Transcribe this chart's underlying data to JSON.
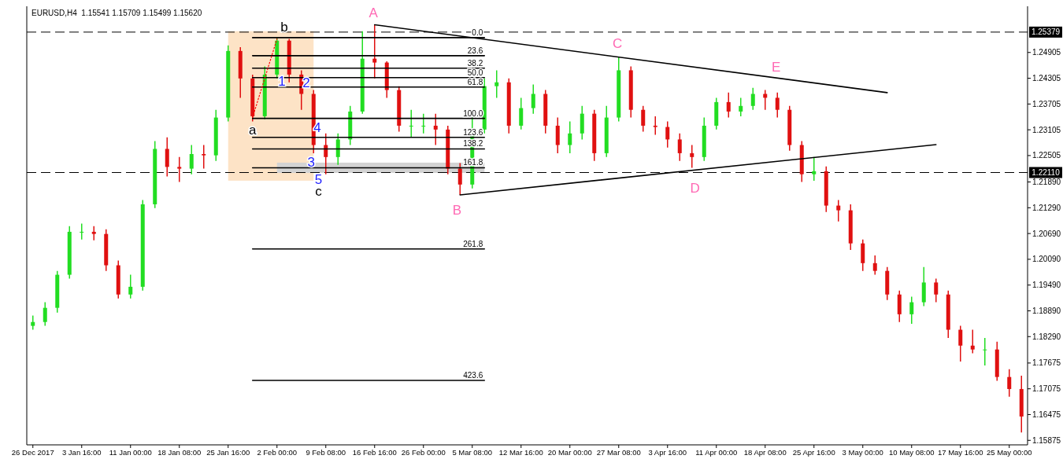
{
  "chart_data": {
    "type": "candlestick",
    "title": "EURUSD,H4  1.15541 1.15709 1.15499 1.15620",
    "categories": [
      "26 Dec 2017",
      null,
      null,
      null,
      "3 Jan 16:00",
      null,
      null,
      null,
      "11 Jan 00:00",
      null,
      null,
      null,
      "18 Jan 08:00",
      null,
      null,
      null,
      "25 Jan 16:00",
      null,
      null,
      null,
      "2 Feb 00:00",
      null,
      null,
      null,
      "9 Feb 08:00",
      null,
      null,
      null,
      "16 Feb 16:00",
      null,
      null,
      null,
      "26 Feb 00:00",
      null,
      null,
      null,
      "5 Mar 08:00",
      null,
      null,
      null,
      "12 Mar 16:00",
      null,
      null,
      null,
      "20 Mar 00:00",
      null,
      null,
      null,
      "27 Mar 08:00",
      null,
      null,
      null,
      "3 Apr 16:00",
      null,
      null,
      null,
      "11 Apr 00:00",
      null,
      null,
      null,
      "18 Apr 08:00",
      null,
      null,
      null,
      "25 Apr 16:00",
      null,
      null,
      null,
      "3 May 00:00",
      null,
      null,
      null,
      "10 May 08:00",
      null,
      null,
      null,
      "17 May 16:00",
      null,
      null,
      null,
      "25 May 00:00",
      null
    ],
    "ohlc": [
      [
        1.1854,
        1.1878,
        1.1845,
        1.1863
      ],
      [
        1.1863,
        1.1909,
        1.1854,
        1.1896
      ],
      [
        1.1896,
        1.1982,
        1.1885,
        1.1973
      ],
      [
        1.1973,
        1.2086,
        1.1964,
        1.2073
      ],
      [
        1.2073,
        1.2092,
        1.2055,
        1.2073
      ],
      [
        1.2073,
        1.2086,
        1.2053,
        1.2068
      ],
      [
        1.2068,
        1.2079,
        1.1982,
        1.1995
      ],
      [
        1.1995,
        1.2006,
        1.1918,
        1.1927
      ],
      [
        1.1927,
        1.1973,
        1.1918,
        1.1945
      ],
      [
        1.1945,
        1.2147,
        1.1936,
        1.2137
      ],
      [
        1.2137,
        1.2284,
        1.2128,
        1.2266
      ],
      [
        1.2266,
        1.2293,
        1.2202,
        1.2224
      ],
      [
        1.2224,
        1.2247,
        1.2189,
        1.222
      ],
      [
        1.222,
        1.2275,
        1.2207,
        1.2254
      ],
      [
        1.2254,
        1.2275,
        1.222,
        1.2251
      ],
      [
        1.2251,
        1.2357,
        1.2238,
        1.2339
      ],
      [
        1.2339,
        1.2507,
        1.233,
        1.2494
      ],
      [
        1.2494,
        1.2503,
        1.2385,
        1.243
      ],
      [
        1.243,
        1.2439,
        1.233,
        1.2342
      ],
      [
        1.2342,
        1.2458,
        1.2335,
        1.2439
      ],
      [
        1.2439,
        1.2525,
        1.243,
        1.2518
      ],
      [
        1.2518,
        1.2522,
        1.2421,
        1.2439
      ],
      [
        1.2439,
        1.2449,
        1.2357,
        1.2394
      ],
      [
        1.2394,
        1.2403,
        1.2256,
        1.2275
      ],
      [
        1.2275,
        1.2302,
        1.2207,
        1.2247
      ],
      [
        1.2247,
        1.2302,
        1.2229,
        1.2288
      ],
      [
        1.2288,
        1.2366,
        1.2275,
        1.2353
      ],
      [
        1.2353,
        1.254,
        1.2348,
        1.2476
      ],
      [
        1.2476,
        1.2555,
        1.243,
        1.2467
      ],
      [
        1.2467,
        1.247,
        1.2385,
        1.2403
      ],
      [
        1.2403,
        1.2412,
        1.2306,
        1.232
      ],
      [
        1.232,
        1.2357,
        1.2293,
        1.232
      ],
      [
        1.232,
        1.2348,
        1.2302,
        1.232
      ],
      [
        1.232,
        1.2348,
        1.2275,
        1.2311
      ],
      [
        1.2311,
        1.232,
        1.2207,
        1.222
      ],
      [
        1.222,
        1.2233,
        1.2159,
        1.2183
      ],
      [
        1.2183,
        1.2339,
        1.2174,
        1.2311
      ],
      [
        1.2311,
        1.243,
        1.2302,
        1.2412
      ],
      [
        1.2412,
        1.2449,
        1.2385,
        1.2421
      ],
      [
        1.2421,
        1.243,
        1.2302,
        1.232
      ],
      [
        1.232,
        1.2385,
        1.2311,
        1.2361
      ],
      [
        1.2361,
        1.2416,
        1.2348,
        1.2394
      ],
      [
        1.2394,
        1.2403,
        1.2302,
        1.232
      ],
      [
        1.232,
        1.2339,
        1.2256,
        1.2275
      ],
      [
        1.2275,
        1.233,
        1.2256,
        1.2302
      ],
      [
        1.2302,
        1.2366,
        1.2288,
        1.2348
      ],
      [
        1.2348,
        1.2357,
        1.2238,
        1.2256
      ],
      [
        1.2256,
        1.2366,
        1.2247,
        1.2339
      ],
      [
        1.2339,
        1.248,
        1.233,
        1.2449
      ],
      [
        1.2449,
        1.2458,
        1.2339,
        1.2357
      ],
      [
        1.2357,
        1.2366,
        1.2306,
        1.232
      ],
      [
        1.232,
        1.2342,
        1.2299,
        1.2317
      ],
      [
        1.2317,
        1.233,
        1.2269,
        1.2288
      ],
      [
        1.2288,
        1.2302,
        1.2238,
        1.2256
      ],
      [
        1.2256,
        1.2275,
        1.2222,
        1.2247
      ],
      [
        1.2247,
        1.2339,
        1.2238,
        1.232
      ],
      [
        1.232,
        1.2385,
        1.2311,
        1.2375
      ],
      [
        1.2375,
        1.2397,
        1.2339,
        1.2353
      ],
      [
        1.2353,
        1.2385,
        1.2342,
        1.2366
      ],
      [
        1.2366,
        1.2408,
        1.2357,
        1.2394
      ],
      [
        1.2394,
        1.2403,
        1.2357,
        1.2385
      ],
      [
        1.2385,
        1.2397,
        1.2339,
        1.2357
      ],
      [
        1.2357,
        1.2366,
        1.2262,
        1.2275
      ],
      [
        1.2275,
        1.2284,
        1.2189,
        1.2207
      ],
      [
        1.2207,
        1.2247,
        1.2192,
        1.2214
      ],
      [
        1.2214,
        1.2225,
        1.2119,
        1.2134
      ],
      [
        1.2134,
        1.2147,
        1.2097,
        1.2123
      ],
      [
        1.2123,
        1.2137,
        1.2031,
        1.2046
      ],
      [
        1.2046,
        1.2055,
        1.1982,
        1.2
      ],
      [
        1.2,
        1.2018,
        1.1973,
        1.1982
      ],
      [
        1.1982,
        1.1991,
        1.1914,
        1.1927
      ],
      [
        1.1927,
        1.1936,
        1.1863,
        1.1881
      ],
      [
        1.1881,
        1.1922,
        1.1859,
        1.1909
      ],
      [
        1.1909,
        1.1991,
        1.19,
        1.1955
      ],
      [
        1.1955,
        1.1964,
        1.1909,
        1.1927
      ],
      [
        1.1927,
        1.1936,
        1.1826,
        1.1845
      ],
      [
        1.1845,
        1.1854,
        1.1771,
        1.1808
      ],
      [
        1.1808,
        1.1845,
        1.179,
        1.1799
      ],
      [
        1.1799,
        1.1826,
        1.1762,
        1.1799
      ],
      [
        1.1799,
        1.1817,
        1.1726,
        1.1735
      ],
      [
        1.1735,
        1.1753,
        1.1689,
        1.1707
      ],
      [
        1.1707,
        1.1738,
        1.1606,
        1.1643
      ]
    ],
    "series": [
      {
        "type": "line",
        "name": "0.0",
        "color": "#000000",
        "values": [
          null,
          null,
          null,
          null,
          null,
          null,
          null,
          null,
          null,
          null,
          null,
          null,
          null,
          null,
          null,
          null,
          null,
          null,
          1.2525,
          null,
          null,
          null,
          null,
          null,
          null,
          null,
          null,
          null,
          null,
          null,
          null,
          null,
          null,
          null,
          null,
          null,
          null,
          1.2525,
          null,
          null,
          null,
          null,
          null,
          null,
          null,
          null,
          null,
          null,
          null,
          null,
          null,
          null,
          null,
          null,
          null,
          null,
          null,
          null,
          null,
          null,
          null,
          null,
          null,
          null,
          null,
          null,
          null,
          null,
          null,
          null,
          null,
          null,
          null,
          null,
          null,
          null,
          null,
          null,
          null,
          null,
          null,
          null
        ]
      },
      {
        "type": "line",
        "name": "23.6",
        "color": "#000000",
        "values": [
          null,
          null,
          null,
          null,
          null,
          null,
          null,
          null,
          null,
          null,
          null,
          null,
          null,
          null,
          null,
          null,
          null,
          null,
          1.2483,
          null,
          null,
          null,
          null,
          null,
          null,
          null,
          null,
          null,
          null,
          null,
          null,
          null,
          null,
          null,
          null,
          null,
          null,
          1.2483,
          null,
          null,
          null,
          null,
          null,
          null,
          null,
          null,
          null,
          null,
          null,
          null,
          null,
          null,
          null,
          null,
          null,
          null,
          null,
          null,
          null,
          null,
          null,
          null,
          null,
          null,
          null,
          null,
          null,
          null,
          null,
          null,
          null,
          null,
          null,
          null,
          null,
          null,
          null,
          null,
          null,
          null,
          null,
          null
        ]
      },
      {
        "type": "line",
        "name": "38.2",
        "color": "#000000",
        "values": [
          null,
          null,
          null,
          null,
          null,
          null,
          null,
          null,
          null,
          null,
          null,
          null,
          null,
          null,
          null,
          null,
          null,
          null,
          1.2454,
          null,
          null,
          null,
          null,
          null,
          null,
          null,
          null,
          null,
          null,
          null,
          null,
          null,
          null,
          null,
          null,
          null,
          null,
          1.2454,
          null,
          null,
          null,
          null,
          null,
          null,
          null,
          null,
          null,
          null,
          null,
          null,
          null,
          null,
          null,
          null,
          null,
          null,
          null,
          null,
          null,
          null,
          null,
          null,
          null,
          null,
          null,
          null,
          null,
          null,
          null,
          null,
          null,
          null,
          null,
          null,
          null,
          null,
          null,
          null,
          null,
          null,
          null,
          null
        ]
      },
      {
        "type": "line",
        "name": "50.0",
        "color": "#000000",
        "values": [
          null,
          null,
          null,
          null,
          null,
          null,
          null,
          null,
          null,
          null,
          null,
          null,
          null,
          null,
          null,
          null,
          null,
          null,
          1.2432,
          null,
          null,
          null,
          null,
          null,
          null,
          null,
          null,
          null,
          null,
          null,
          null,
          null,
          null,
          null,
          null,
          null,
          null,
          1.2432,
          null,
          null,
          null,
          null,
          null,
          null,
          null,
          null,
          null,
          null,
          null,
          null,
          null,
          null,
          null,
          null,
          null,
          null,
          null,
          null,
          null,
          null,
          null,
          null,
          null,
          null,
          null,
          null,
          null,
          null,
          null,
          null,
          null,
          null,
          null,
          null,
          null,
          null,
          null,
          null,
          null,
          null,
          null,
          null
        ]
      },
      {
        "type": "line",
        "name": "61.8",
        "color": "#000000",
        "values": [
          null,
          null,
          null,
          null,
          null,
          null,
          null,
          null,
          null,
          null,
          null,
          null,
          null,
          null,
          null,
          null,
          null,
          null,
          1.241,
          null,
          null,
          null,
          null,
          null,
          null,
          null,
          null,
          null,
          null,
          null,
          null,
          null,
          null,
          null,
          null,
          null,
          null,
          1.241,
          null,
          null,
          null,
          null,
          null,
          null,
          null,
          null,
          null,
          null,
          null,
          null,
          null,
          null,
          null,
          null,
          null,
          null,
          null,
          null,
          null,
          null,
          null,
          null,
          null,
          null,
          null,
          null,
          null,
          null,
          null,
          null,
          null,
          null,
          null,
          null,
          null,
          null,
          null,
          null,
          null,
          null,
          null,
          null
        ]
      },
      {
        "type": "line",
        "name": "100.0",
        "color": "#000000",
        "values": [
          null,
          null,
          null,
          null,
          null,
          null,
          null,
          null,
          null,
          null,
          null,
          null,
          null,
          null,
          null,
          null,
          null,
          null,
          1.2337,
          null,
          null,
          null,
          null,
          null,
          null,
          null,
          null,
          null,
          null,
          null,
          null,
          null,
          null,
          null,
          null,
          null,
          null,
          1.2337,
          null,
          null,
          null,
          null,
          null,
          null,
          null,
          null,
          null,
          null,
          null,
          null,
          null,
          null,
          null,
          null,
          null,
          null,
          null,
          null,
          null,
          null,
          null,
          null,
          null,
          null,
          null,
          null,
          null,
          null,
          null,
          null,
          null,
          null,
          null,
          null,
          null,
          null,
          null,
          null,
          null,
          null,
          null,
          null
        ]
      },
      {
        "type": "line",
        "name": "123.6",
        "color": "#000000",
        "values": [
          null,
          null,
          null,
          null,
          null,
          null,
          null,
          null,
          null,
          null,
          null,
          null,
          null,
          null,
          null,
          null,
          null,
          null,
          1.2293,
          null,
          null,
          null,
          null,
          null,
          null,
          null,
          null,
          null,
          null,
          null,
          null,
          null,
          null,
          null,
          null,
          null,
          null,
          1.2293,
          null,
          null,
          null,
          null,
          null,
          null,
          null,
          null,
          null,
          null,
          null,
          null,
          null,
          null,
          null,
          null,
          null,
          null,
          null,
          null,
          null,
          null,
          null,
          null,
          null,
          null,
          null,
          null,
          null,
          null,
          null,
          null,
          null,
          null,
          null,
          null,
          null,
          null,
          null,
          null,
          null,
          null,
          null,
          null
        ]
      },
      {
        "type": "line",
        "name": "138.2",
        "color": "#000000",
        "values": [
          null,
          null,
          null,
          null,
          null,
          null,
          null,
          null,
          null,
          null,
          null,
          null,
          null,
          null,
          null,
          null,
          null,
          null,
          1.2266,
          null,
          null,
          null,
          null,
          null,
          null,
          null,
          null,
          null,
          null,
          null,
          null,
          null,
          null,
          null,
          null,
          null,
          null,
          1.2266,
          null,
          null,
          null,
          null,
          null,
          null,
          null,
          null,
          null,
          null,
          null,
          null,
          null,
          null,
          null,
          null,
          null,
          null,
          null,
          null,
          null,
          null,
          null,
          null,
          null,
          null,
          null,
          null,
          null,
          null,
          null,
          null,
          null,
          null,
          null,
          null,
          null,
          null,
          null,
          null,
          null,
          null,
          null,
          null
        ]
      },
      {
        "type": "line",
        "name": "161.8",
        "color": "#000000",
        "values": [
          null,
          null,
          null,
          null,
          null,
          null,
          null,
          null,
          null,
          null,
          null,
          null,
          null,
          null,
          null,
          null,
          null,
          null,
          1.2222,
          null,
          null,
          null,
          null,
          null,
          null,
          null,
          null,
          null,
          null,
          null,
          null,
          null,
          null,
          null,
          null,
          null,
          null,
          1.2222,
          null,
          null,
          null,
          null,
          null,
          null,
          null,
          null,
          null,
          null,
          null,
          null,
          null,
          null,
          null,
          null,
          null,
          null,
          null,
          null,
          null,
          null,
          null,
          null,
          null,
          null,
          null,
          null,
          null,
          null,
          null,
          null,
          null,
          null,
          null,
          null,
          null,
          null,
          null,
          null,
          null,
          null,
          null,
          null
        ]
      },
      {
        "type": "line",
        "name": "261.8",
        "color": "#000000",
        "values": [
          null,
          null,
          null,
          null,
          null,
          null,
          null,
          null,
          null,
          null,
          null,
          null,
          null,
          null,
          null,
          null,
          null,
          null,
          1.2033,
          null,
          null,
          null,
          null,
          null,
          null,
          null,
          null,
          null,
          null,
          null,
          null,
          null,
          null,
          null,
          null,
          null,
          null,
          1.2033,
          null,
          null,
          null,
          null,
          null,
          null,
          null,
          null,
          null,
          null,
          null,
          null,
          null,
          null,
          null,
          null,
          null,
          null,
          null,
          null,
          null,
          null,
          null,
          null,
          null,
          null,
          null,
          null,
          null,
          null,
          null,
          null,
          null,
          null,
          null,
          null,
          null,
          null,
          null,
          null,
          null,
          null,
          null,
          null
        ]
      },
      {
        "type": "line",
        "name": "423.6",
        "color": "#000000",
        "values": [
          null,
          null,
          null,
          null,
          null,
          null,
          null,
          null,
          null,
          null,
          null,
          null,
          null,
          null,
          null,
          null,
          null,
          null,
          1.1727,
          null,
          null,
          null,
          null,
          null,
          null,
          null,
          null,
          null,
          null,
          null,
          null,
          null,
          null,
          null,
          null,
          null,
          null,
          1.1727,
          null,
          null,
          null,
          null,
          null,
          null,
          null,
          null,
          null,
          null,
          null,
          null,
          null,
          null,
          null,
          null,
          null,
          null,
          null,
          null,
          null,
          null,
          null,
          null,
          null,
          null,
          null,
          null,
          null,
          null,
          null,
          null,
          null,
          null,
          null,
          null,
          null,
          null,
          null,
          null,
          null,
          null,
          null,
          null
        ]
      },
      {
        "type": "line",
        "color": "#ff0000",
        "line_style": "dotted",
        "values": [
          null,
          null,
          null,
          null,
          null,
          null,
          null,
          null,
          null,
          null,
          null,
          null,
          null,
          null,
          null,
          null,
          null,
          null,
          1.2339,
          null,
          1.2522,
          null,
          null,
          null,
          null,
          null,
          null,
          null,
          null,
          null,
          null,
          null,
          null,
          null,
          null,
          null,
          null,
          null,
          null,
          null,
          null,
          null,
          null,
          null,
          null,
          null,
          null,
          null,
          null,
          null,
          null,
          null,
          null,
          null,
          null,
          null,
          null,
          null,
          null,
          null,
          null,
          null,
          null,
          null,
          null,
          null,
          null,
          null,
          null,
          null,
          null,
          null,
          null,
          null,
          null,
          null,
          null,
          null,
          null,
          null,
          null,
          null
        ]
      },
      {
        "type": "line",
        "color": "#000000",
        "values": [
          null,
          null,
          null,
          null,
          null,
          null,
          null,
          null,
          null,
          null,
          null,
          null,
          null,
          null,
          null,
          null,
          null,
          null,
          null,
          null,
          null,
          null,
          null,
          null,
          null,
          null,
          null,
          null,
          1.2555,
          null,
          null,
          null,
          null,
          null,
          null,
          null,
          null,
          null,
          null,
          null,
          null,
          null,
          null,
          null,
          null,
          null,
          null,
          null,
          null,
          null,
          null,
          null,
          null,
          null,
          null,
          null,
          null,
          null,
          null,
          null,
          null,
          null,
          null,
          null,
          null,
          null,
          null,
          null,
          null,
          null,
          1.2397,
          null,
          null,
          null,
          null,
          null,
          null,
          null,
          null,
          null,
          null,
          null
        ]
      },
      {
        "type": "line",
        "color": "#000000",
        "values": [
          null,
          null,
          null,
          null,
          null,
          null,
          null,
          null,
          null,
          null,
          null,
          null,
          null,
          null,
          null,
          null,
          null,
          null,
          null,
          null,
          null,
          null,
          null,
          null,
          null,
          null,
          null,
          null,
          null,
          null,
          null,
          null,
          null,
          null,
          null,
          1.2159,
          null,
          null,
          null,
          null,
          null,
          null,
          null,
          null,
          null,
          null,
          null,
          null,
          null,
          null,
          null,
          null,
          null,
          null,
          null,
          null,
          null,
          null,
          null,
          null,
          null,
          null,
          null,
          null,
          null,
          null,
          null,
          null,
          null,
          null,
          null,
          null,
          null,
          null,
          1.2276,
          null,
          null,
          null,
          null,
          null,
          null,
          null
        ]
      }
    ],
    "ref_lines": [
      {
        "axis": "y",
        "value": 1.25379,
        "label": "1.25379",
        "line_style": "dashed"
      },
      {
        "axis": "y",
        "value": 1.2211,
        "label": "1.22110",
        "line_style": "dashed"
      }
    ],
    "annotations": [
      "A",
      "B",
      "C",
      "D",
      "E",
      "a",
      "b",
      "c",
      "1",
      "2",
      "3",
      "4",
      "5"
    ],
    "ylim": [
      1.1577,
      1.2598
    ],
    "yticks": [
      {
        "value": 1.24905,
        "label": "1.24905"
      },
      {
        "value": 1.24305,
        "label": "1.24305"
      },
      {
        "value": 1.23705,
        "label": "1.23705"
      },
      {
        "value": 1.23105,
        "label": "1.23105"
      },
      {
        "value": 1.22505,
        "label": "1.22505"
      },
      {
        "value": 1.2189,
        "label": "1.21890"
      },
      {
        "value": 1.2129,
        "label": "1.21290"
      },
      {
        "value": 1.2069,
        "label": "1.20690"
      },
      {
        "value": 1.2009,
        "label": "1.20090"
      },
      {
        "value": 1.1949,
        "label": "1.19490"
      },
      {
        "value": 1.1889,
        "label": "1.18890"
      },
      {
        "value": 1.1829,
        "label": "1.18290"
      },
      {
        "value": 1.17675,
        "label": "1.17675"
      },
      {
        "value": 1.17075,
        "label": "1.17075"
      },
      {
        "value": 1.16475,
        "label": "1.16475"
      },
      {
        "value": 1.15875,
        "label": "1.15875"
      }
    ]
  }
}
